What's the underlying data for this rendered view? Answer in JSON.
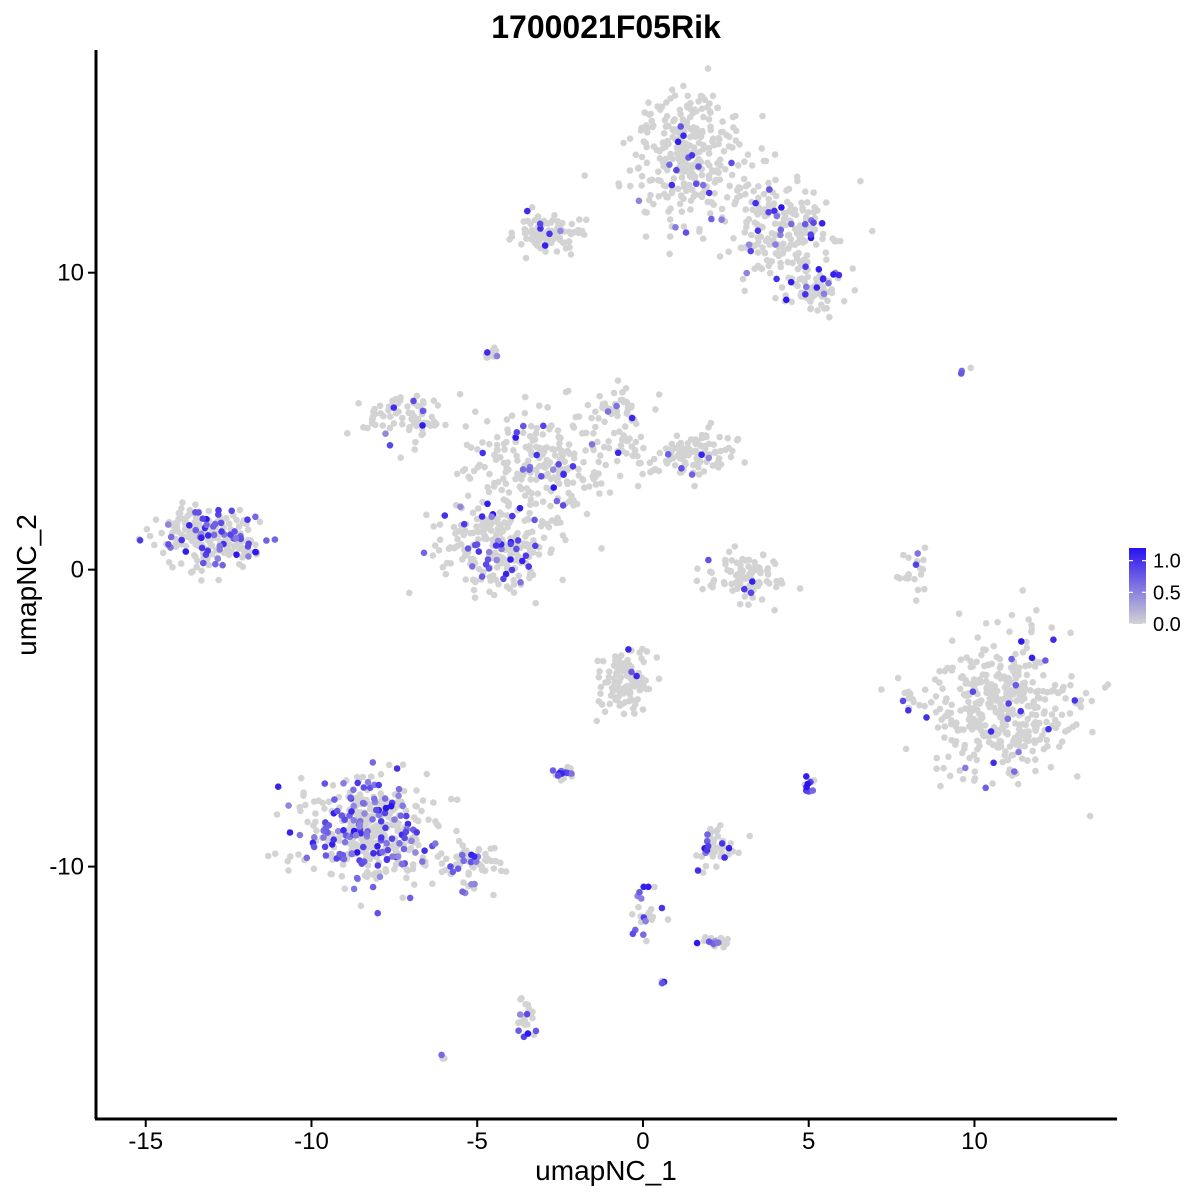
{
  "chart_data": {
    "type": "scatter",
    "title": "1700021F05Rik",
    "xlabel": "umapNC_1",
    "ylabel": "umapNC_2",
    "xlim": [
      -16.5,
      14.3
    ],
    "ylim": [
      -18.5,
      17.5
    ],
    "x_ticks": [
      -15,
      -10,
      -5,
      0,
      5,
      10
    ],
    "x_tick_labels": [
      "-15",
      "-10",
      "-5",
      "0",
      "5",
      "10"
    ],
    "y_ticks": [
      -10,
      0,
      10
    ],
    "y_tick_labels": [
      "-10",
      "0",
      "10"
    ],
    "grid": false,
    "legend_position": "right",
    "colorbar": {
      "min": 0.0,
      "max": 1.2,
      "ticks": [
        0.0,
        0.5,
        1.0
      ],
      "tick_labels": [
        "0.0",
        "0.5",
        "1.0"
      ],
      "low_color": "#d3d3d3",
      "high_color": "#2a12f0"
    },
    "clusters": [
      {
        "center": [
          1.5,
          14.0
        ],
        "spread": [
          1.2,
          1.6
        ],
        "count": 320,
        "expressed_fraction": 0.05
      },
      {
        "center": [
          4.3,
          11.5
        ],
        "spread": [
          1.0,
          1.1
        ],
        "count": 200,
        "expressed_fraction": 0.1
      },
      {
        "center": [
          5.2,
          9.4
        ],
        "spread": [
          0.6,
          0.5
        ],
        "count": 70,
        "expressed_fraction": 0.15
      },
      {
        "center": [
          -2.8,
          11.3
        ],
        "spread": [
          0.7,
          0.5
        ],
        "count": 90,
        "expressed_fraction": 0.05
      },
      {
        "center": [
          -13.0,
          1.1
        ],
        "spread": [
          1.1,
          0.7
        ],
        "count": 240,
        "expressed_fraction": 0.25
      },
      {
        "center": [
          -4.4,
          0.8
        ],
        "spread": [
          1.1,
          1.0
        ],
        "count": 230,
        "expressed_fraction": 0.17
      },
      {
        "center": [
          -3.0,
          3.6
        ],
        "spread": [
          1.5,
          1.2
        ],
        "count": 240,
        "expressed_fraction": 0.12
      },
      {
        "center": [
          -7.0,
          5.1
        ],
        "spread": [
          1.0,
          0.6
        ],
        "count": 80,
        "expressed_fraction": 0.08
      },
      {
        "center": [
          -0.8,
          5.2
        ],
        "spread": [
          0.6,
          0.8
        ],
        "count": 60,
        "expressed_fraction": 0.1
      },
      {
        "center": [
          1.5,
          3.9
        ],
        "spread": [
          0.9,
          0.5
        ],
        "count": 110,
        "expressed_fraction": 0.06
      },
      {
        "center": [
          3.2,
          -0.2
        ],
        "spread": [
          0.9,
          0.6
        ],
        "count": 90,
        "expressed_fraction": 0.06
      },
      {
        "center": [
          10.8,
          -4.6
        ],
        "spread": [
          1.5,
          1.6
        ],
        "count": 420,
        "expressed_fraction": 0.04
      },
      {
        "center": [
          -8.3,
          -8.8
        ],
        "spread": [
          1.2,
          1.2
        ],
        "count": 420,
        "expressed_fraction": 0.3
      },
      {
        "center": [
          -5.2,
          -9.9
        ],
        "spread": [
          0.9,
          0.4
        ],
        "count": 70,
        "expressed_fraction": 0.25
      },
      {
        "center": [
          -0.5,
          -3.8
        ],
        "spread": [
          0.5,
          0.7
        ],
        "count": 110,
        "expressed_fraction": 0.05
      },
      {
        "center": [
          2.2,
          -9.4
        ],
        "spread": [
          0.4,
          0.4
        ],
        "count": 50,
        "expressed_fraction": 0.15
      },
      {
        "center": [
          -2.4,
          -6.9
        ],
        "spread": [
          0.2,
          0.2
        ],
        "count": 20,
        "expressed_fraction": 0.4
      },
      {
        "center": [
          -3.5,
          -15.2
        ],
        "spread": [
          0.2,
          0.5
        ],
        "count": 25,
        "expressed_fraction": 0.25
      },
      {
        "center": [
          0.1,
          -11.5
        ],
        "spread": [
          0.3,
          0.7
        ],
        "count": 25,
        "expressed_fraction": 0.3
      },
      {
        "center": [
          2.2,
          -12.5
        ],
        "spread": [
          0.3,
          0.2
        ],
        "count": 20,
        "expressed_fraction": 0.2
      },
      {
        "center": [
          5.0,
          -7.3
        ],
        "spread": [
          0.1,
          0.25
        ],
        "count": 12,
        "expressed_fraction": 0.6
      },
      {
        "center": [
          -4.5,
          7.3
        ],
        "spread": [
          0.15,
          0.15
        ],
        "count": 12,
        "expressed_fraction": 0.3
      },
      {
        "center": [
          8.1,
          -0.1
        ],
        "spread": [
          0.3,
          0.8
        ],
        "count": 20,
        "expressed_fraction": 0.1
      },
      {
        "center": [
          8.0,
          -4.5
        ],
        "spread": [
          0.1,
          0.3
        ],
        "count": 10,
        "expressed_fraction": 0.2
      },
      {
        "center": [
          -6.0,
          -16.4
        ],
        "spread": [
          0.05,
          0.05
        ],
        "count": 4,
        "expressed_fraction": 0.3
      },
      {
        "center": [
          0.6,
          -13.9
        ],
        "spread": [
          0.05,
          0.05
        ],
        "count": 4,
        "expressed_fraction": 0.3
      },
      {
        "center": [
          9.7,
          6.7
        ],
        "spread": [
          0.1,
          0.1
        ],
        "count": 4,
        "expressed_fraction": 0.5
      }
    ]
  }
}
